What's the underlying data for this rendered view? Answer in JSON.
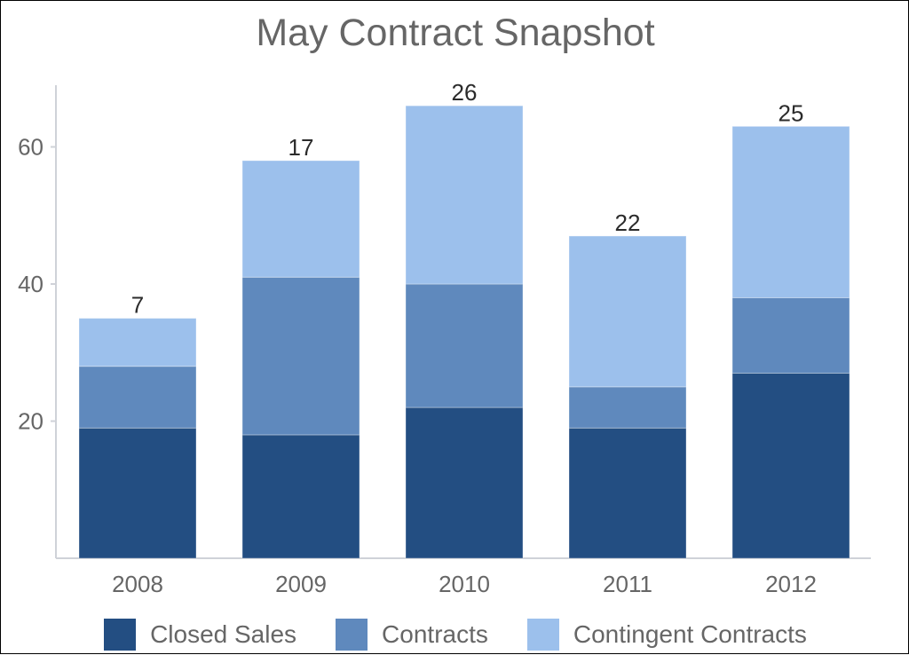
{
  "chart_data": {
    "type": "bar",
    "stacked": true,
    "title": "May Contract Snapshot",
    "xlabel": "",
    "ylabel": "",
    "categories": [
      "2008",
      "2009",
      "2010",
      "2011",
      "2012"
    ],
    "series": [
      {
        "name": "Closed Sales",
        "values": [
          19,
          18,
          22,
          19,
          27
        ],
        "color": "#234e82"
      },
      {
        "name": "Contracts",
        "values": [
          9,
          23,
          18,
          6,
          11
        ],
        "color": "#5f89bd"
      },
      {
        "name": "Contingent Contracts",
        "values": [
          7,
          17,
          26,
          22,
          25
        ],
        "color": "#9cc0ec"
      }
    ],
    "yticks": [
      20,
      40,
      60
    ],
    "ylim": [
      0,
      69
    ],
    "grid": false,
    "data_labels": true,
    "legend_position": "bottom"
  }
}
